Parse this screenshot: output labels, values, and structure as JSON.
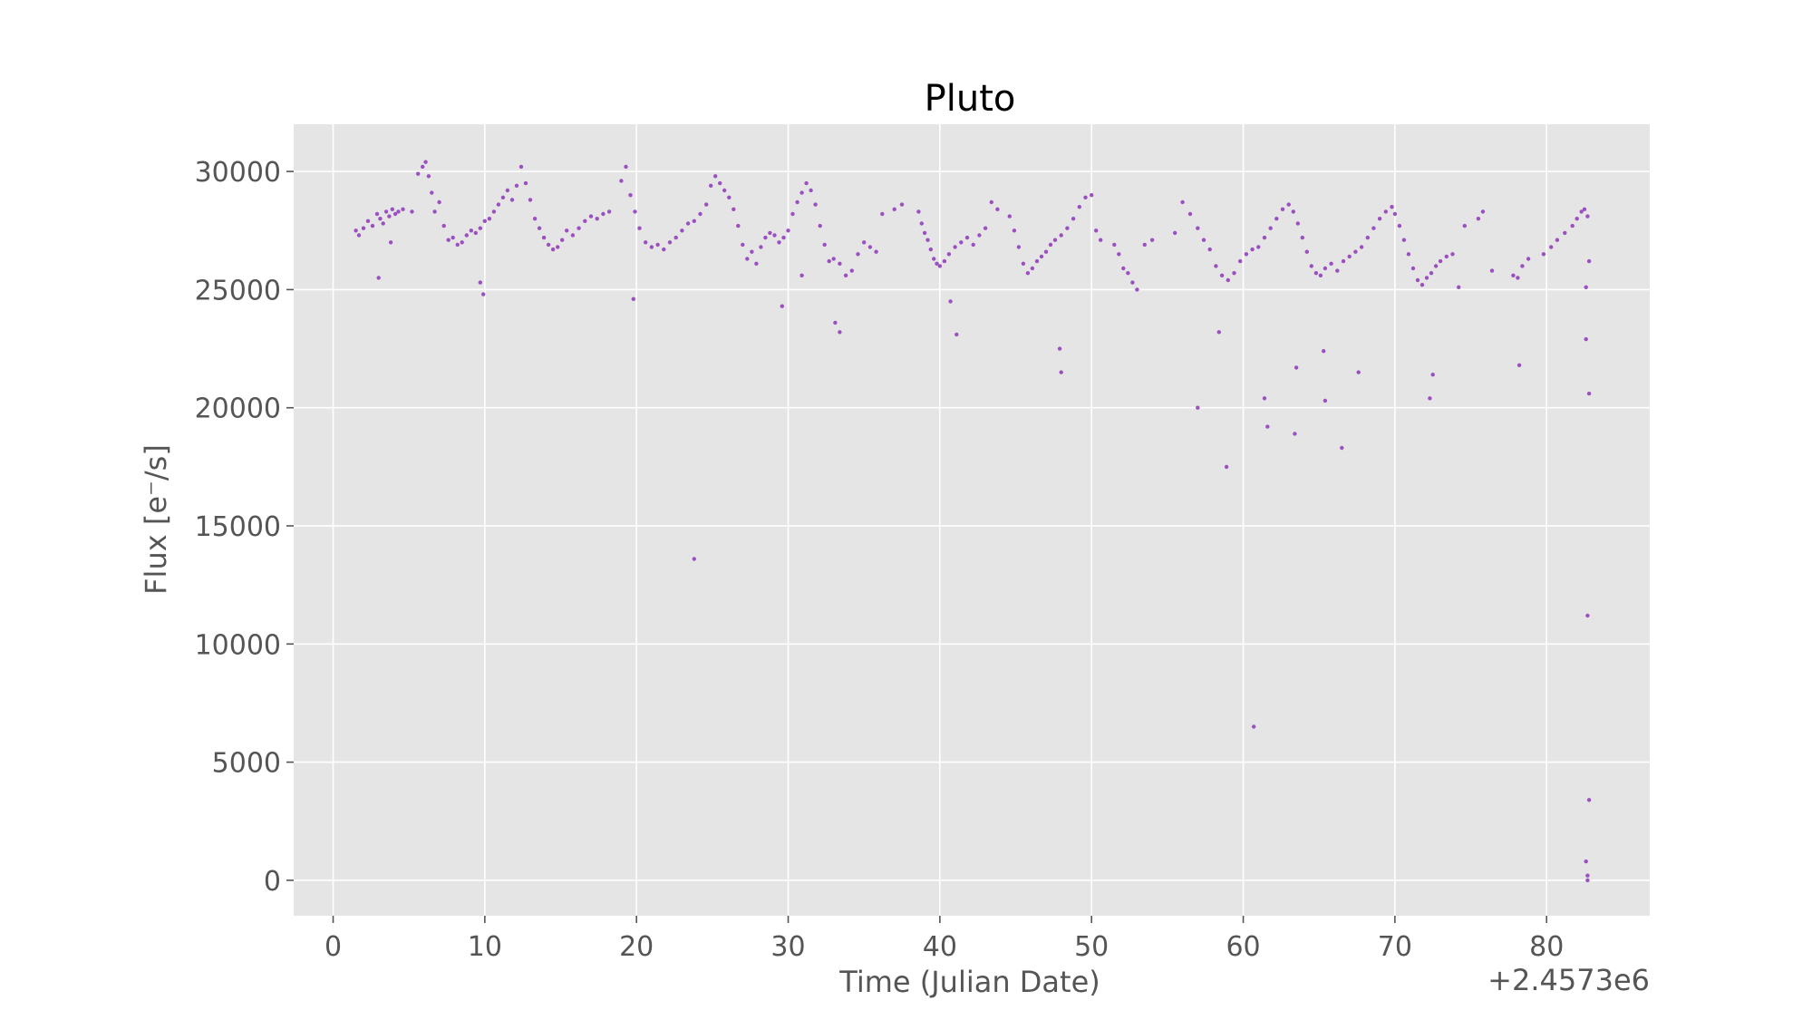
{
  "chart_data": {
    "type": "scatter",
    "title": "Pluto",
    "xlabel": "Time (Julian Date)",
    "ylabel": "Flux [e⁻/s]",
    "x_offset_label": "+2.4573e6",
    "xlim": [
      -2.6,
      86.8
    ],
    "ylim": [
      -1500,
      32000
    ],
    "x_ticks": [
      0,
      10,
      20,
      30,
      40,
      50,
      60,
      70,
      80
    ],
    "x_tick_labels": [
      "0",
      "10",
      "20",
      "30",
      "40",
      "50",
      "60",
      "70",
      "80"
    ],
    "y_ticks": [
      0,
      5000,
      10000,
      15000,
      20000,
      25000,
      30000
    ],
    "y_tick_labels": [
      "0",
      "5000",
      "10000",
      "15000",
      "20000",
      "25000",
      "30000"
    ],
    "grid": true,
    "background": "#e5e5e5",
    "marker_color": "#9b4fc0",
    "series": [
      {
        "x": [
          1.5,
          1.7,
          2.0,
          2.3,
          2.6,
          2.9,
          3.1,
          3.3,
          3.5,
          3.7,
          3.9,
          4.1,
          4.3,
          4.6,
          3.8,
          3.0,
          5.2,
          5.6,
          5.9,
          6.1,
          6.3,
          6.5,
          6.7,
          7.0,
          7.3,
          7.6,
          7.9,
          8.2,
          8.5,
          8.8,
          9.1,
          9.4,
          9.7,
          10.0,
          10.3,
          10.6,
          10.9,
          11.2,
          11.5,
          11.8,
          12.1,
          12.4,
          12.7,
          13.0,
          13.3,
          13.6,
          13.9,
          14.2,
          14.5,
          14.8,
          15.1,
          15.4,
          15.8,
          16.2,
          16.6,
          17.0,
          17.4,
          17.8,
          18.2,
          19.0,
          19.3,
          19.6,
          19.9,
          20.2,
          20.6,
          21.0,
          21.4,
          21.8,
          22.2,
          22.6,
          23.0,
          23.4,
          23.8,
          24.2,
          24.6,
          24.9,
          25.2,
          25.5,
          25.8,
          26.1,
          26.4,
          26.7,
          27.0,
          27.3,
          27.6,
          27.9,
          28.2,
          28.5,
          28.8,
          29.1,
          29.4,
          29.7,
          30.0,
          30.3,
          30.6,
          30.9,
          31.2,
          31.5,
          31.8,
          32.1,
          32.4,
          32.7,
          33.0,
          33.4,
          33.8,
          34.2,
          34.6,
          35.0,
          35.4,
          35.8,
          36.2,
          37.0,
          37.5,
          38.6,
          38.8,
          39.0,
          39.2,
          39.4,
          39.6,
          39.8,
          40.0,
          40.3,
          40.6,
          41.0,
          41.4,
          41.8,
          42.2,
          42.6,
          43.0,
          43.4,
          43.8,
          44.6,
          44.9,
          45.2,
          45.5,
          45.8,
          46.1,
          46.4,
          46.7,
          47.0,
          47.3,
          47.6,
          48.0,
          48.4,
          48.8,
          49.2,
          49.6,
          50.0,
          50.3,
          50.6,
          51.5,
          51.8,
          52.1,
          52.4,
          52.7,
          53.0,
          53.5,
          54.0,
          55.5,
          56.0,
          56.5,
          57.0,
          57.4,
          57.8,
          58.2,
          58.6,
          59.0,
          59.4,
          59.8,
          60.2,
          60.6,
          61.0,
          61.4,
          61.8,
          62.2,
          62.6,
          63.0,
          63.3,
          63.6,
          63.9,
          64.2,
          64.5,
          64.8,
          65.1,
          65.4,
          65.8,
          66.2,
          66.6,
          67.0,
          67.4,
          67.8,
          68.2,
          68.6,
          69.0,
          69.4,
          69.8,
          70.0,
          70.3,
          70.6,
          70.9,
          71.2,
          71.5,
          71.8,
          72.1,
          72.4,
          72.7,
          73.0,
          73.4,
          73.8,
          74.2,
          74.6,
          75.5,
          75.8,
          76.4,
          77.8,
          78.1,
          78.4,
          78.8,
          79.8,
          80.3,
          80.7,
          81.2,
          81.7,
          82.0,
          82.3,
          82.5,
          82.7,
          82.6,
          82.8,
          82.7,
          82.8,
          82.6,
          82.7,
          82.8,
          9.7,
          9.9,
          19.8,
          23.8,
          29.6,
          30.9,
          33.1,
          33.4,
          40.7,
          41.1,
          47.9,
          48.0,
          57.0,
          58.4,
          58.9,
          60.7,
          61.4,
          61.6,
          63.4,
          63.5,
          65.3,
          65.4,
          66.5,
          67.6,
          72.3,
          72.5,
          78.2,
          82.6,
          82.7
        ],
        "y": [
          27500,
          27300,
          27600,
          27900,
          27700,
          28200,
          28000,
          27800,
          28300,
          28100,
          28400,
          28200,
          28300,
          28400,
          27000,
          25500,
          28300,
          29900,
          30200,
          30400,
          29800,
          29100,
          28300,
          28700,
          27700,
          27100,
          27200,
          26900,
          27000,
          27300,
          27500,
          27400,
          27600,
          27900,
          28000,
          28300,
          28600,
          28900,
          29200,
          28800,
          29400,
          30200,
          29500,
          28800,
          28000,
          27600,
          27200,
          26900,
          26700,
          26800,
          27100,
          27500,
          27300,
          27600,
          27900,
          28100,
          28000,
          28200,
          28300,
          29600,
          30200,
          29000,
          28300,
          27600,
          27000,
          26800,
          26900,
          26700,
          27000,
          27200,
          27500,
          27800,
          27900,
          28200,
          28600,
          29400,
          29800,
          29500,
          29200,
          28900,
          28400,
          27700,
          26900,
          26300,
          26600,
          26100,
          26800,
          27200,
          27400,
          27300,
          27000,
          27200,
          27500,
          28200,
          28700,
          29100,
          29500,
          29200,
          28600,
          27700,
          26900,
          26200,
          26300,
          26100,
          25600,
          25800,
          26500,
          27000,
          26800,
          26600,
          28200,
          28400,
          28600,
          28300,
          27800,
          27400,
          27100,
          26700,
          26300,
          26100,
          26000,
          26200,
          26500,
          26800,
          27000,
          27200,
          26900,
          27300,
          27600,
          28700,
          28400,
          28100,
          27500,
          26800,
          26100,
          25700,
          25900,
          26200,
          26400,
          26600,
          26900,
          27100,
          27300,
          27600,
          28000,
          28500,
          28900,
          29000,
          27500,
          27100,
          26900,
          26500,
          25900,
          25700,
          25300,
          25000,
          26900,
          27100,
          27400,
          28700,
          28200,
          27600,
          27100,
          26700,
          26000,
          25600,
          25400,
          25700,
          26200,
          26500,
          26700,
          26800,
          27200,
          27600,
          28000,
          28400,
          28600,
          28300,
          27800,
          27200,
          26600,
          26000,
          25700,
          25600,
          25900,
          26100,
          25800,
          26200,
          26400,
          26600,
          26800,
          27200,
          27600,
          28000,
          28300,
          28500,
          28200,
          27700,
          27100,
          26500,
          25900,
          25400,
          25200,
          25500,
          25700,
          26000,
          26200,
          26400,
          26500,
          25100,
          27700,
          28000,
          28300,
          25800,
          25600,
          25500,
          26000,
          26300,
          26500,
          26800,
          27100,
          27400,
          27700,
          28000,
          28300,
          28400,
          28100,
          25100,
          26200,
          11200,
          3400,
          800,
          200,
          20600,
          25300,
          24800,
          24600,
          13600,
          24300,
          25600,
          23600,
          23200,
          24500,
          23100,
          22500,
          21500,
          20000,
          23200,
          17500,
          6500,
          20400,
          19200,
          18900,
          21700,
          22400,
          20300,
          18300,
          21500,
          20400,
          21400,
          21800,
          22900,
          0
        ]
      }
    ]
  }
}
